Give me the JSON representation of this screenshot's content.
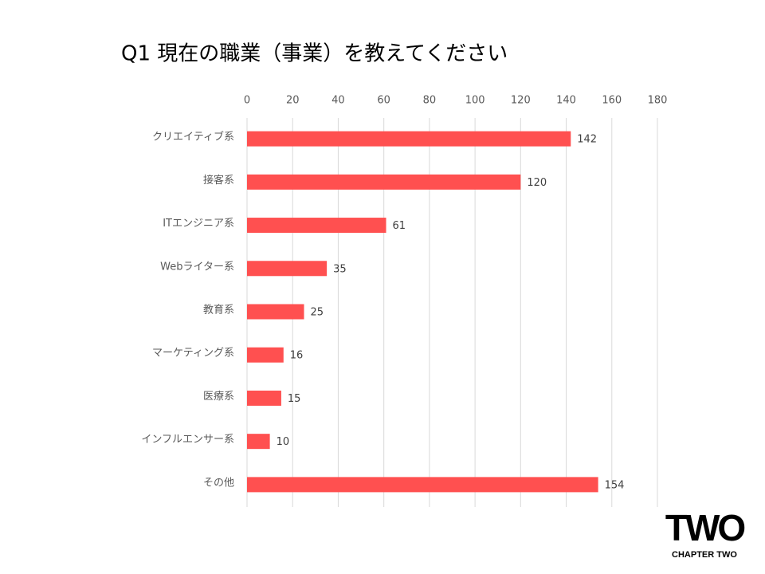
{
  "chart_data": {
    "type": "barh",
    "title": "Q1 現在の職業（事業）を教えてください",
    "categories": [
      "クリエイティブ系",
      "接客系",
      "ITエンジニア系",
      "Webライター系",
      "教育系",
      "マーケティング系",
      "医療系",
      "インフルエンサー系",
      "その他"
    ],
    "values": [
      142,
      120,
      61,
      35,
      25,
      16,
      15,
      10,
      154
    ],
    "color": "#ff5050",
    "xlim": [
      0,
      180
    ],
    "xticks": [
      0,
      20,
      40,
      60,
      80,
      100,
      120,
      140,
      160,
      180
    ],
    "grid": true
  },
  "logo": {
    "mark": "TWO",
    "caption": "CHAPTER TWO"
  }
}
